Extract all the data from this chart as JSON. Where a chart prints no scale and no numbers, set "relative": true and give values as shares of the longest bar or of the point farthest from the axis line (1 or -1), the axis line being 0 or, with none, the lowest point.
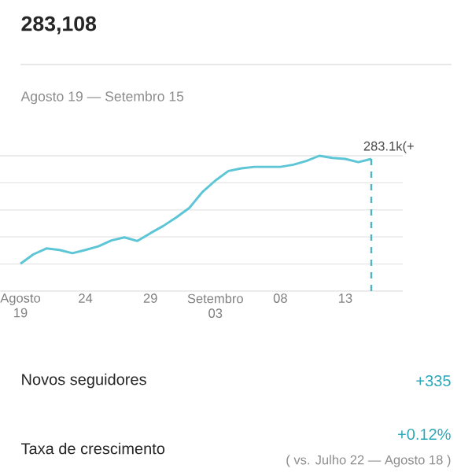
{
  "chart_data": {
    "type": "line",
    "title": "283,108",
    "subtitle": "Agosto 19 — Setembro 15",
    "categories": [
      "Agosto 19",
      null,
      null,
      null,
      null,
      "24",
      null,
      null,
      null,
      null,
      "29",
      null,
      null,
      null,
      null,
      "Setembro 03",
      null,
      null,
      null,
      null,
      "08",
      null,
      null,
      null,
      null,
      "13",
      null,
      null
    ],
    "series": [
      {
        "color": "#5cc6d6",
        "values": [
          0.202,
          0.272,
          0.315,
          0.304,
          0.28,
          0.304,
          0.331,
          0.374,
          0.397,
          0.37,
          0.428,
          0.482,
          0.545,
          0.615,
          0.732,
          0.817,
          0.887,
          0.907,
          0.918,
          0.918,
          0.918,
          0.934,
          0.961,
          1,
          0.984,
          0.977,
          0.953,
          0.977
        ]
      }
    ],
    "relative": true,
    "grid": "y",
    "marker": "none",
    "annotations": [
      "Novos seguidores",
      "+335",
      "Taxa de crescimento",
      "+0.12%",
      "( vs. Julho 22 — Agosto 18 )",
      "283.1k(+"
    ]
  }
}
